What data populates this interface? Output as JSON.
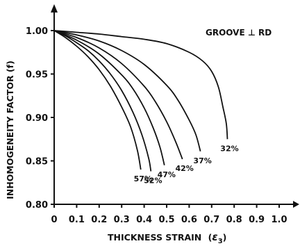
{
  "chart_data": {
    "type": "line",
    "xlabel": "THICKNESS STRAIN",
    "xlabel_symbol": "ε",
    "xlabel_subscript": "3",
    "ylabel": "INHOMOGENEITY FACTOR (f)",
    "xlim": [
      0,
      1.0
    ],
    "ylim": [
      0.8,
      1.0
    ],
    "x_ticks": [
      "0",
      "0.1",
      "0.2",
      "0.3",
      "0.4",
      "0.5",
      "0.6",
      "0.7",
      "0.8",
      "0.9",
      "1.0"
    ],
    "y_ticks": [
      "0.80",
      "0.85",
      "0.90",
      "0.95",
      "1.00"
    ],
    "grid": false,
    "legend": "none",
    "annotation": "GROOVE ⊥ RD",
    "series": [
      {
        "name": "57%",
        "points": [
          [
            0,
            1.0
          ],
          [
            0.05,
            0.992
          ],
          [
            0.1,
            0.982
          ],
          [
            0.15,
            0.97
          ],
          [
            0.2,
            0.955
          ],
          [
            0.25,
            0.936
          ],
          [
            0.3,
            0.912
          ],
          [
            0.34,
            0.889
          ],
          [
            0.37,
            0.862
          ],
          [
            0.385,
            0.84
          ]
        ]
      },
      {
        "name": "52%",
        "points": [
          [
            0,
            1.0
          ],
          [
            0.05,
            0.994
          ],
          [
            0.1,
            0.986
          ],
          [
            0.15,
            0.977
          ],
          [
            0.2,
            0.965
          ],
          [
            0.25,
            0.95
          ],
          [
            0.3,
            0.931
          ],
          [
            0.35,
            0.906
          ],
          [
            0.39,
            0.88
          ],
          [
            0.42,
            0.853
          ],
          [
            0.43,
            0.838
          ]
        ]
      },
      {
        "name": "47%",
        "points": [
          [
            0,
            1.0
          ],
          [
            0.1,
            0.989
          ],
          [
            0.2,
            0.973
          ],
          [
            0.3,
            0.949
          ],
          [
            0.35,
            0.933
          ],
          [
            0.4,
            0.911
          ],
          [
            0.44,
            0.888
          ],
          [
            0.47,
            0.866
          ],
          [
            0.49,
            0.845
          ]
        ]
      },
      {
        "name": "42%",
        "points": [
          [
            0,
            1.0
          ],
          [
            0.1,
            0.992
          ],
          [
            0.2,
            0.98
          ],
          [
            0.3,
            0.962
          ],
          [
            0.4,
            0.936
          ],
          [
            0.45,
            0.918
          ],
          [
            0.5,
            0.895
          ],
          [
            0.54,
            0.872
          ],
          [
            0.57,
            0.852
          ]
        ]
      },
      {
        "name": "37%",
        "points": [
          [
            0,
            1.0
          ],
          [
            0.1,
            0.995
          ],
          [
            0.2,
            0.988
          ],
          [
            0.3,
            0.977
          ],
          [
            0.4,
            0.961
          ],
          [
            0.5,
            0.937
          ],
          [
            0.55,
            0.92
          ],
          [
            0.6,
            0.897
          ],
          [
            0.63,
            0.88
          ],
          [
            0.65,
            0.861
          ]
        ]
      },
      {
        "name": "32%",
        "points": [
          [
            0,
            1.0
          ],
          [
            0.1,
            0.998
          ],
          [
            0.2,
            0.996
          ],
          [
            0.3,
            0.993
          ],
          [
            0.4,
            0.99
          ],
          [
            0.5,
            0.985
          ],
          [
            0.6,
            0.975
          ],
          [
            0.66,
            0.965
          ],
          [
            0.7,
            0.953
          ],
          [
            0.73,
            0.935
          ],
          [
            0.75,
            0.912
          ],
          [
            0.765,
            0.893
          ],
          [
            0.77,
            0.875
          ]
        ]
      }
    ]
  }
}
